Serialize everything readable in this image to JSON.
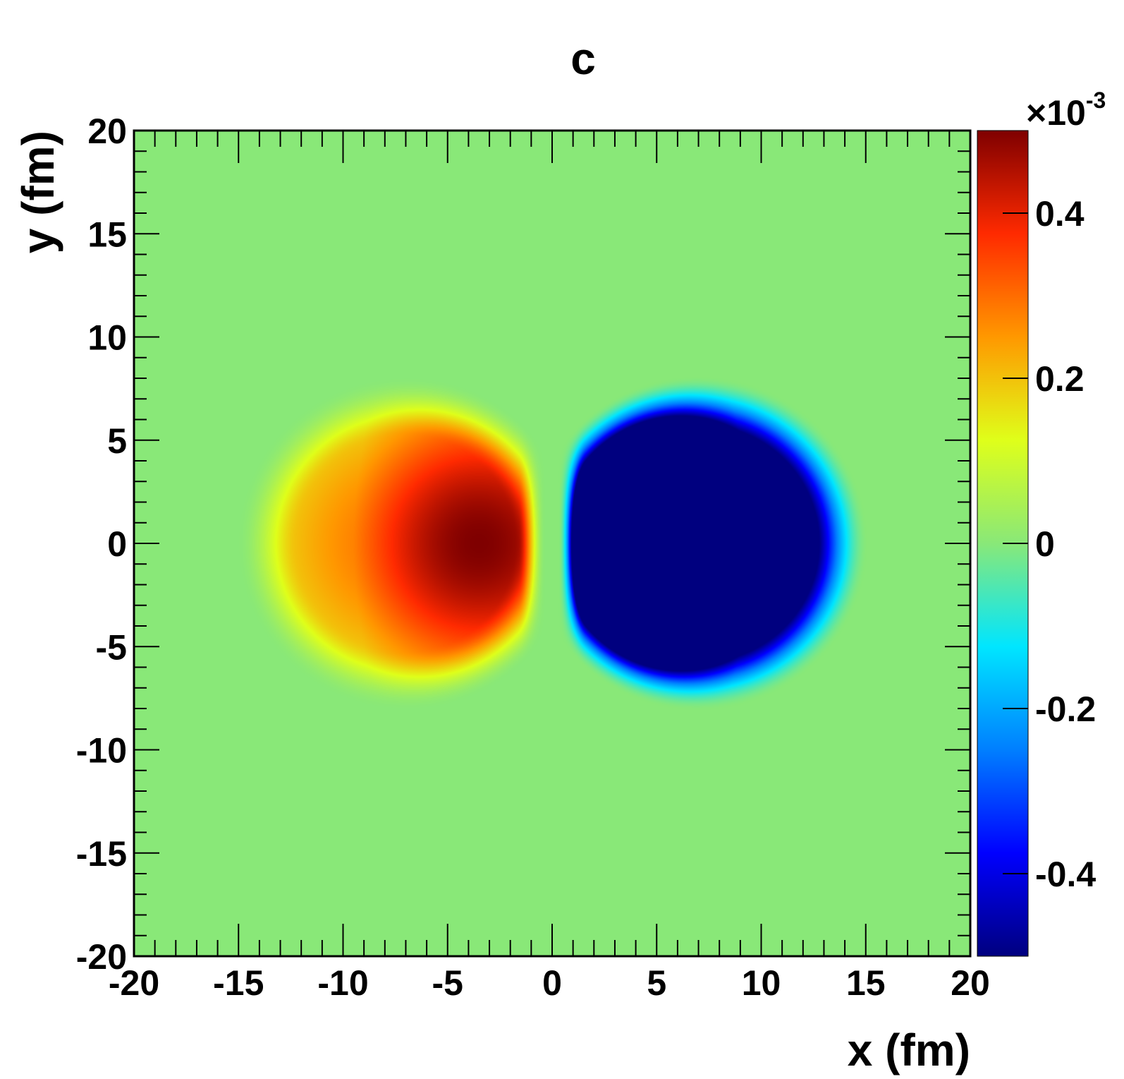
{
  "chart_data": {
    "type": "heatmap",
    "title": "c",
    "xlabel": "x (fm)",
    "ylabel": "y (fm)",
    "xlim": [
      -20,
      20
    ],
    "ylim": [
      -20,
      20
    ],
    "x_ticks": [
      -20,
      -15,
      -10,
      -5,
      0,
      5,
      10,
      15,
      20
    ],
    "x_tick_labels": [
      "-20",
      "-15",
      "-10",
      "-5",
      "0",
      "5",
      "10",
      "15",
      "20"
    ],
    "y_ticks": [
      -20,
      -15,
      -10,
      -5,
      0,
      5,
      10,
      15,
      20
    ],
    "y_tick_labels": [
      "-20",
      "-15",
      "-10",
      "-5",
      "0",
      "5",
      "10",
      "15",
      "20"
    ],
    "colorbar": {
      "multiplier_label": "×10",
      "multiplier_exponent": "-3",
      "range": [
        -0.5,
        0.5
      ],
      "ticks": [
        -0.4,
        -0.2,
        0,
        0.2,
        0.4
      ],
      "tick_labels": [
        "-0.4",
        "-0.2",
        "0",
        "0.2",
        "0.4"
      ],
      "colormap": [
        "#00007f",
        "#0000ff",
        "#007fff",
        "#00e6ff",
        "#89e878",
        "#dfff1a",
        "#ff9800",
        "#ff2a00",
        "#7f0000"
      ]
    },
    "structures": [
      {
        "name": "positive lobe",
        "center": [
          -3.5,
          0
        ],
        "peak": 0.5,
        "outer_radius": 7.5,
        "ring_center": [
          -7,
          0
        ]
      },
      {
        "name": "negative lobe",
        "center": [
          3.5,
          0
        ],
        "peak": -0.5,
        "outer_radius": 7.5,
        "ring_center": [
          7,
          0
        ]
      }
    ],
    "background_value": 0
  }
}
